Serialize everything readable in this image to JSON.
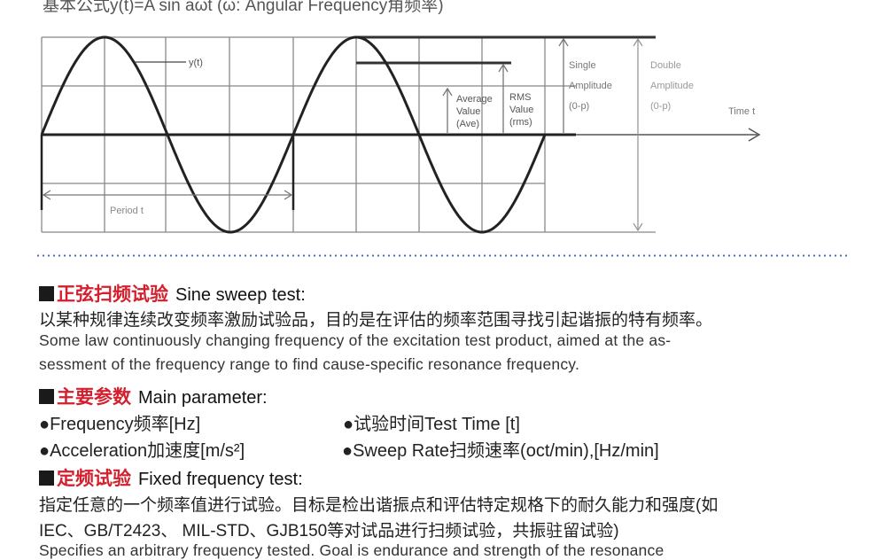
{
  "formula": "基本公式y(t)=A sin aωt (ω: Angular Frequency角频率)",
  "diagram": {
    "curve_label": "y(t)",
    "period_label": "Period t",
    "average_label": [
      "Average",
      "Value",
      "(Ave)"
    ],
    "rms_label": [
      "RMS",
      "Value",
      "(rms)"
    ],
    "single_amplitude_label": [
      "Single",
      "Amplitude",
      "(0-p)"
    ],
    "double_amplitude_label": [
      "Double",
      "Amplitude",
      "(0-p)"
    ],
    "time_label": "Time t"
  },
  "sections": {
    "sine": {
      "title_cn": "正弦扫频试验",
      "title_en": "Sine sweep test:",
      "desc_cn": "以某种规律连续改变频率激励试验品，目的是在评估的频率范围寻找引起谐振的特有频率。",
      "desc_en_1": "Some law continuously changing frequency of the excitation test product, aimed at the as-",
      "desc_en_2": "sessment of the frequency range to find cause-specific resonance frequency."
    },
    "params": {
      "title_cn": "主要参数",
      "title_en": "Main parameter:",
      "items": [
        "●Frequency频率[Hz]",
        "●试验时间Test Time [t]",
        "●Acceleration加速度[m/s²]",
        "●Sweep Rate扫频速率(oct/min),[Hz/min]"
      ]
    },
    "fixed": {
      "title_cn": "定频试验",
      "title_en": "Fixed frequency test:",
      "desc_cn_1": "指定任意的一个频率值进行试验。目标是检出谐振点和评估特定规格下的耐久能力和强度(如",
      "desc_cn_2": "IEC、GB/T2423、 MIL-STD、GJB150等对试品进行扫频试验，共振驻留试验)",
      "desc_en_1": "Specifies an arbitrary frequency tested. Goal is endurance and strength of the resonance"
    }
  },
  "colors": {
    "heading_red": "#d4202e",
    "divider_blue": "#3a6fc0"
  }
}
